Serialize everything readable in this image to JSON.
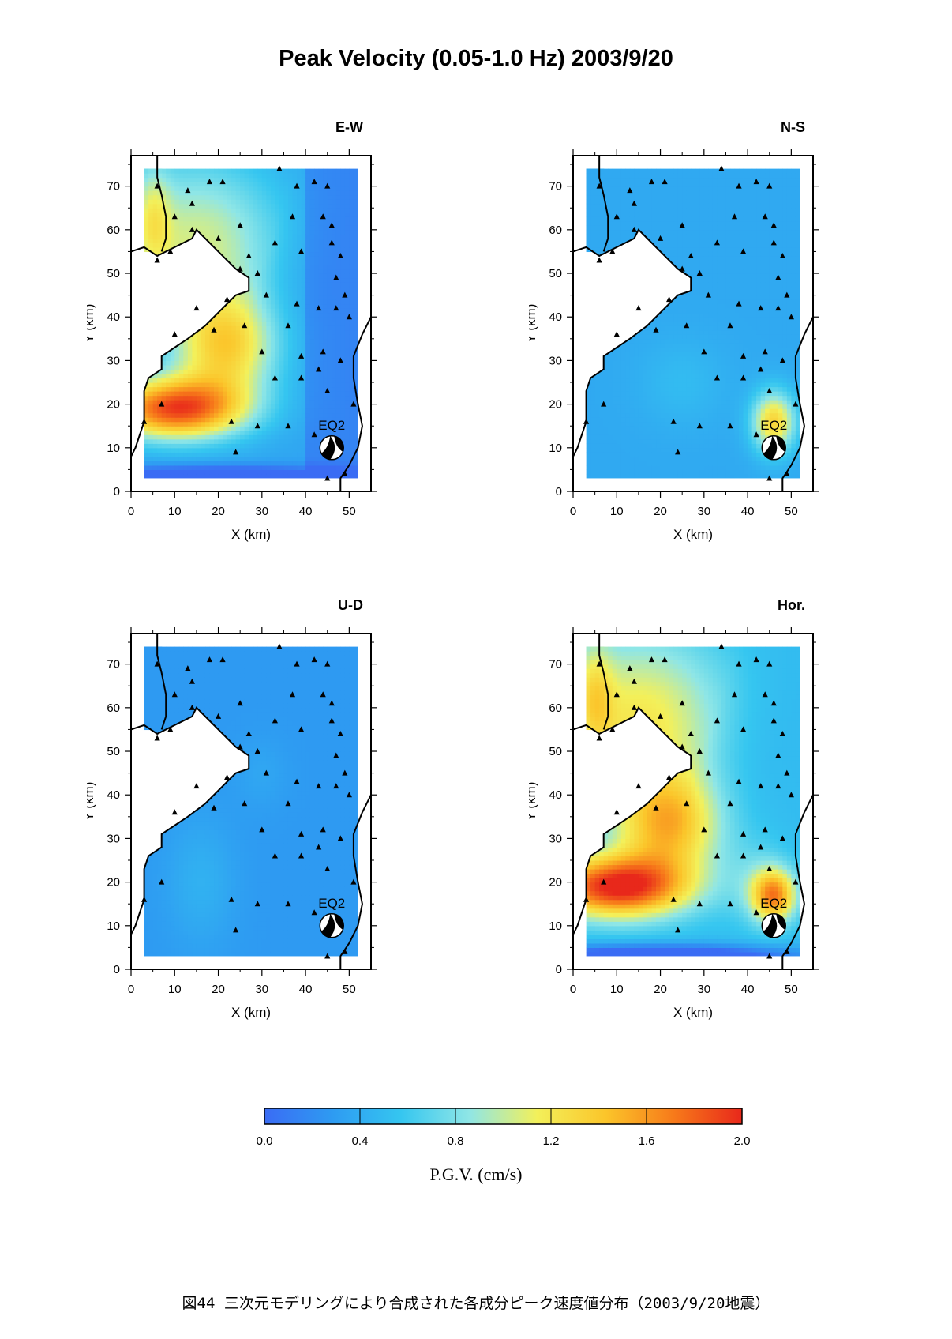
{
  "title": "Peak Velocity (0.05-1.0 Hz) 2003/9/20",
  "caption": "図44 三次元モデリングにより合成された各成分ピーク速度値分布（2003/9/20地震）",
  "colors": {
    "scale": [
      "#3a6cf4",
      "#2e9bf2",
      "#35c6f0",
      "#8fe6e6",
      "#f3f05a",
      "#fbc52a",
      "#f77a1a",
      "#e8281b"
    ],
    "coast": "#000000",
    "land": "#ffffff"
  },
  "chart_data": [
    {
      "type": "heatmap",
      "title": "E-W",
      "xlabel": "X (km)",
      "ylabel": "Y (km)",
      "xlim": [
        0,
        55
      ],
      "ylim": [
        0,
        77
      ],
      "xticks": [
        "0",
        "10",
        "20",
        "30",
        "40",
        "50"
      ],
      "yticks": [
        "0",
        "10",
        "20",
        "30",
        "40",
        "50",
        "60",
        "70"
      ],
      "pattern": "ew",
      "marker": {
        "label": "EQ2",
        "x": 46,
        "y": 10
      }
    },
    {
      "type": "heatmap",
      "title": "N-S",
      "xlabel": "X (km)",
      "ylabel": "Y (km)",
      "xlim": [
        0,
        55
      ],
      "ylim": [
        0,
        77
      ],
      "xticks": [
        "0",
        "10",
        "20",
        "30",
        "40",
        "50"
      ],
      "yticks": [
        "0",
        "10",
        "20",
        "30",
        "40",
        "50",
        "60",
        "70"
      ],
      "pattern": "ns",
      "marker": {
        "label": "EQ2",
        "x": 46,
        "y": 10
      }
    },
    {
      "type": "heatmap",
      "title": "U-D",
      "xlabel": "X (km)",
      "ylabel": "Y (km)",
      "xlim": [
        0,
        55
      ],
      "ylim": [
        0,
        77
      ],
      "xticks": [
        "0",
        "10",
        "20",
        "30",
        "40",
        "50"
      ],
      "yticks": [
        "0",
        "10",
        "20",
        "30",
        "40",
        "50",
        "60",
        "70"
      ],
      "pattern": "ud",
      "marker": {
        "label": "EQ2",
        "x": 46,
        "y": 10
      }
    },
    {
      "type": "heatmap",
      "title": "Hor.",
      "xlabel": "X (km)",
      "ylabel": "Y (km)",
      "xlim": [
        0,
        55
      ],
      "ylim": [
        0,
        77
      ],
      "xticks": [
        "0",
        "10",
        "20",
        "30",
        "40",
        "50"
      ],
      "yticks": [
        "0",
        "10",
        "20",
        "30",
        "40",
        "50",
        "60",
        "70"
      ],
      "pattern": "hor",
      "marker": {
        "label": "EQ2",
        "x": 46,
        "y": 10
      }
    }
  ],
  "stations": [
    [
      6,
      70
    ],
    [
      13,
      69
    ],
    [
      18,
      71
    ],
    [
      21,
      71
    ],
    [
      10,
      63
    ],
    [
      14,
      66
    ],
    [
      25,
      61
    ],
    [
      34,
      74
    ],
    [
      38,
      70
    ],
    [
      42,
      71
    ],
    [
      45,
      70
    ],
    [
      37,
      63
    ],
    [
      44,
      63
    ],
    [
      46,
      61
    ],
    [
      14,
      60
    ],
    [
      20,
      58
    ],
    [
      27,
      54
    ],
    [
      6,
      53
    ],
    [
      9,
      55
    ],
    [
      25,
      51
    ],
    [
      29,
      50
    ],
    [
      33,
      57
    ],
    [
      31,
      45
    ],
    [
      39,
      55
    ],
    [
      46,
      57
    ],
    [
      48,
      54
    ],
    [
      47,
      49
    ],
    [
      49,
      45
    ],
    [
      38,
      43
    ],
    [
      36,
      38
    ],
    [
      22,
      44
    ],
    [
      15,
      42
    ],
    [
      26,
      38
    ],
    [
      19,
      37
    ],
    [
      10,
      36
    ],
    [
      30,
      32
    ],
    [
      44,
      32
    ],
    [
      39,
      31
    ],
    [
      43,
      28
    ],
    [
      48,
      30
    ],
    [
      50,
      40
    ],
    [
      47,
      42
    ],
    [
      43,
      42
    ],
    [
      39,
      26
    ],
    [
      33,
      26
    ],
    [
      45,
      23
    ],
    [
      7,
      20
    ],
    [
      3,
      16
    ],
    [
      23,
      16
    ],
    [
      29,
      15
    ],
    [
      36,
      15
    ],
    [
      24,
      9
    ],
    [
      45,
      3
    ],
    [
      49,
      4
    ],
    [
      42,
      13
    ],
    [
      51,
      20
    ]
  ],
  "colorbar": {
    "ticks": [
      "0.0",
      "0.4",
      "0.8",
      "1.2",
      "1.6",
      "2.0"
    ],
    "min": 0,
    "max": 2,
    "label": "P.G.V. (cm/s)"
  }
}
